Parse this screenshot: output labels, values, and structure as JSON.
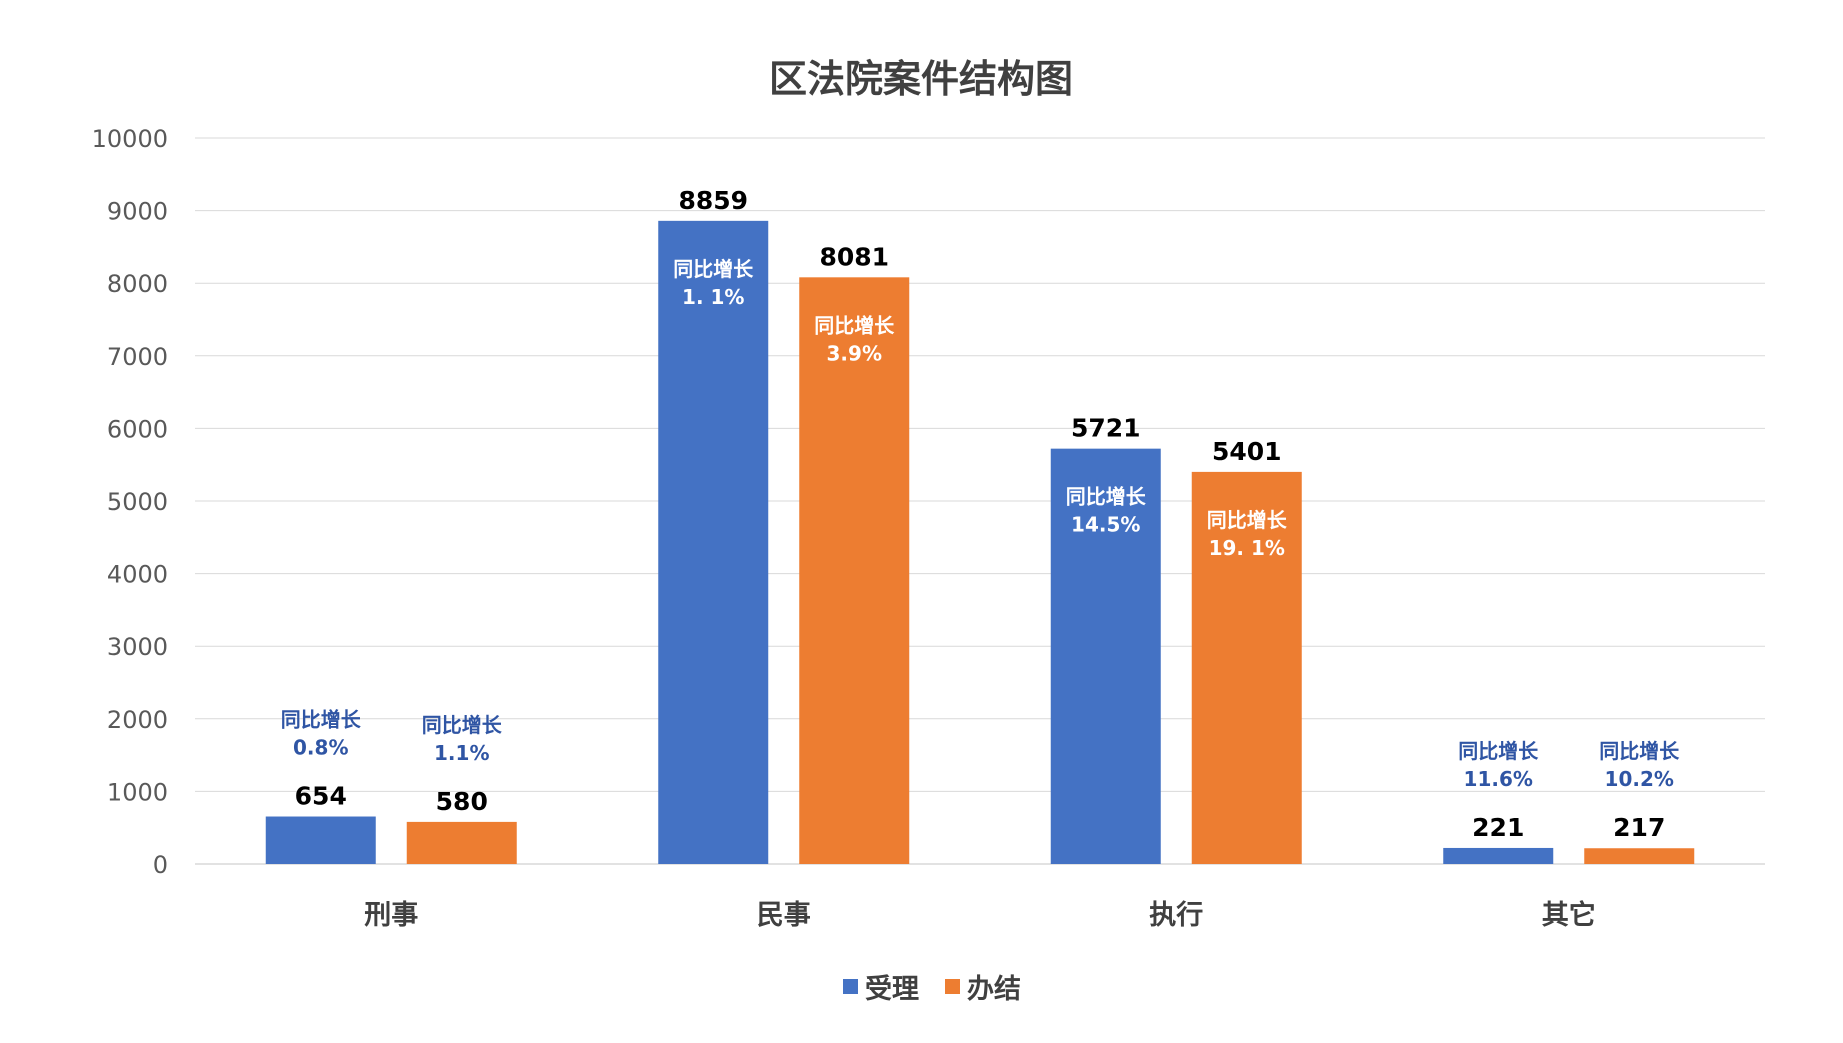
{
  "chart_data": {
    "type": "bar",
    "title": "区法院案件结构图",
    "xlabel": "",
    "ylabel": "",
    "ylim": [
      0,
      10000
    ],
    "yticks": [
      "0",
      "1000",
      "2000",
      "3000",
      "4000",
      "5000",
      "6000",
      "7000",
      "8000",
      "9000",
      "10000"
    ],
    "grid": true,
    "legend_position": "bottom-center",
    "categories": [
      "刑事",
      "民事",
      "执行",
      "其它"
    ],
    "series": [
      {
        "name": "受理",
        "color": "#4472C4",
        "values": [
          654,
          8859,
          5721,
          221
        ],
        "value_labels": [
          "654",
          "8859",
          "5721",
          "221"
        ],
        "growth_prefix": [
          "同比增长",
          "同比增长",
          "同比增长",
          "同比增长"
        ],
        "growth": [
          "0.8%",
          "1. 1%",
          "14.5%",
          "11.6%"
        ]
      },
      {
        "name": "办结",
        "color": "#ED7D31",
        "values": [
          580,
          8081,
          5401,
          217
        ],
        "value_labels": [
          "580",
          "8081",
          "5401",
          "217"
        ],
        "growth_prefix": [
          "同比增长",
          "同比增长",
          "同比增长",
          "同比增长"
        ],
        "growth": [
          "1.1%",
          "3.9%",
          "19. 1%",
          "10.2%"
        ]
      }
    ],
    "colors": {
      "gridline": "#D9D9D9",
      "axis_text": "#595959",
      "category_text": "#404040",
      "value_label": "#000000",
      "growth_outside": "#2F55A4",
      "growth_inside": "#FFFFFF"
    }
  }
}
